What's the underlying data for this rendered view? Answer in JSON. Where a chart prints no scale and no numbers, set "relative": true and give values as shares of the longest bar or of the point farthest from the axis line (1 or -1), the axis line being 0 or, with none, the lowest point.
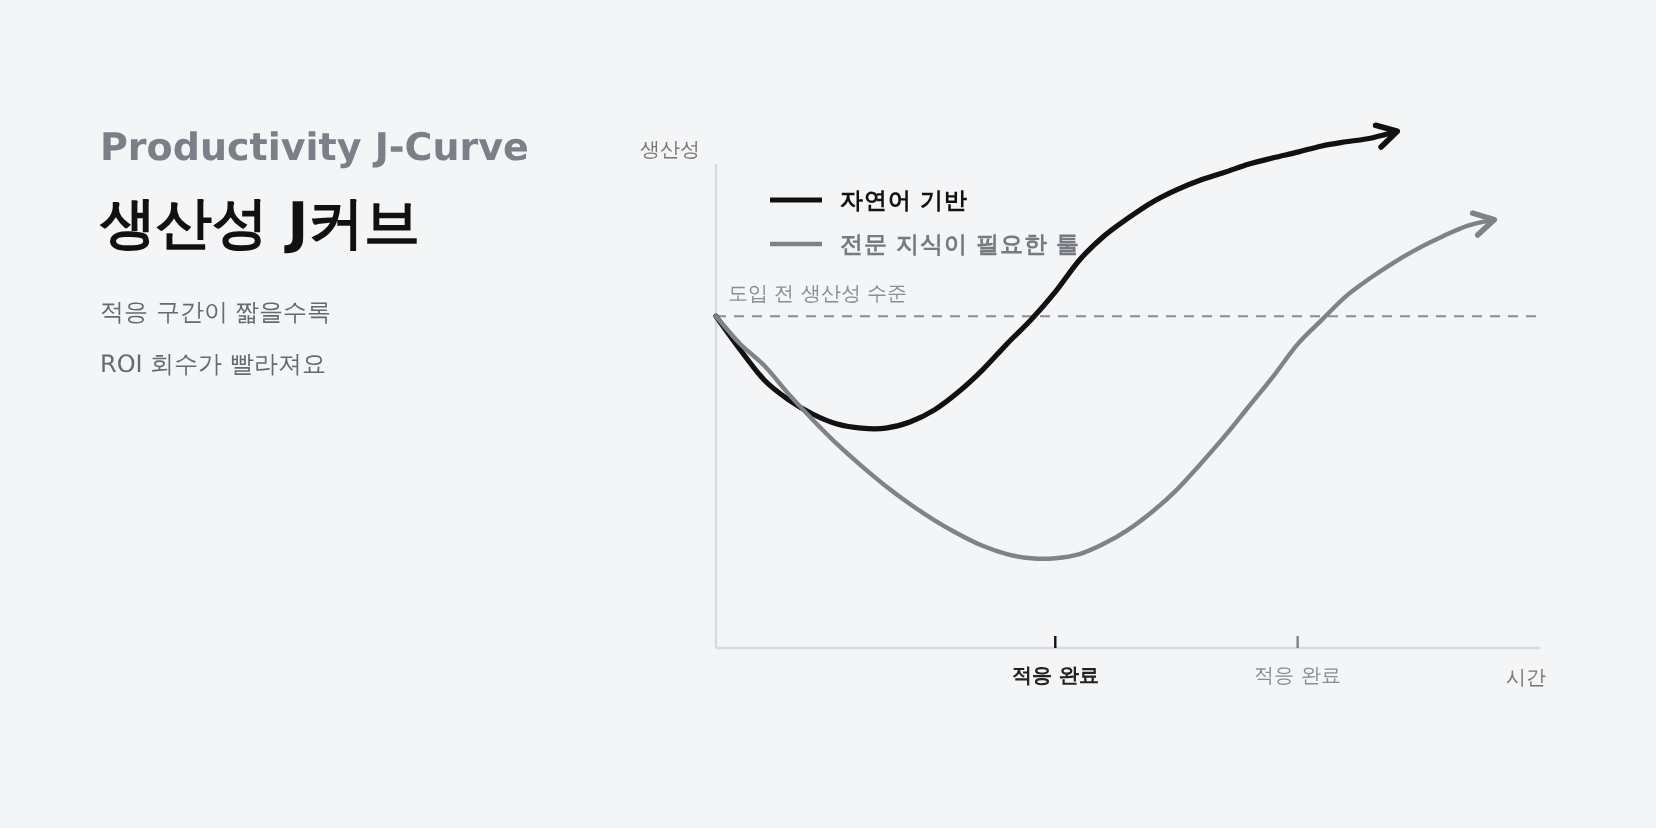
{
  "chart_data": {
    "type": "line",
    "title": "생산성 J커브",
    "subtitle": "Productivity J-Curve",
    "xlabel": "시간",
    "ylabel": "생산성",
    "relative": true,
    "legend": "top left",
    "marker": "none",
    "line_style": "solid",
    "annotations": [
      "적응 구간이 짧을수록\nROI 회수가 빨라져요"
    ],
    "categories": [
      null,
      null,
      null,
      null,
      null,
      null,
      null,
      null,
      null,
      null,
      null,
      null,
      null,
      null,
      "적응 완료",
      null,
      null,
      null,
      null,
      null,
      null,
      null,
      null,
      null,
      "적응 완료",
      null,
      null,
      null,
      null,
      null,
      null,
      null,
      null,
      null,
      null
    ],
    "ref_lines": [
      {
        "axis": "y",
        "value": 0.643,
        "label": "도입 전 생산성 수준",
        "color": "#8a8d93",
        "line_style": "dashed"
      }
    ],
    "series": [
      {
        "name": "자연어 기반",
        "color": "#111111",
        "values": [
          0.643,
          0.578,
          0.519,
          0.481,
          0.453,
          0.434,
          0.426,
          0.426,
          0.438,
          0.461,
          0.496,
          0.539,
          0.589,
          0.636,
          0.69,
          0.752,
          0.798,
          0.833,
          0.864,
          0.888,
          0.907,
          0.922,
          0.938,
          0.95,
          0.961,
          0.973,
          0.981,
          0.988,
          1,
          null,
          null,
          null,
          null,
          null,
          null
        ]
      },
      {
        "name": "전문 지식이 필요한 툴",
        "color": "#80828a",
        "values": [
          0.643,
          0.589,
          0.547,
          0.492,
          0.442,
          0.395,
          0.353,
          0.314,
          0.279,
          0.248,
          0.221,
          0.198,
          0.182,
          0.174,
          0.174,
          0.182,
          0.202,
          0.229,
          0.264,
          0.306,
          0.357,
          0.411,
          0.469,
          0.527,
          0.589,
          0.636,
          0.682,
          0.717,
          0.748,
          0.775,
          0.798,
          0.818,
          0.829,
          null,
          null
        ]
      }
    ]
  }
}
